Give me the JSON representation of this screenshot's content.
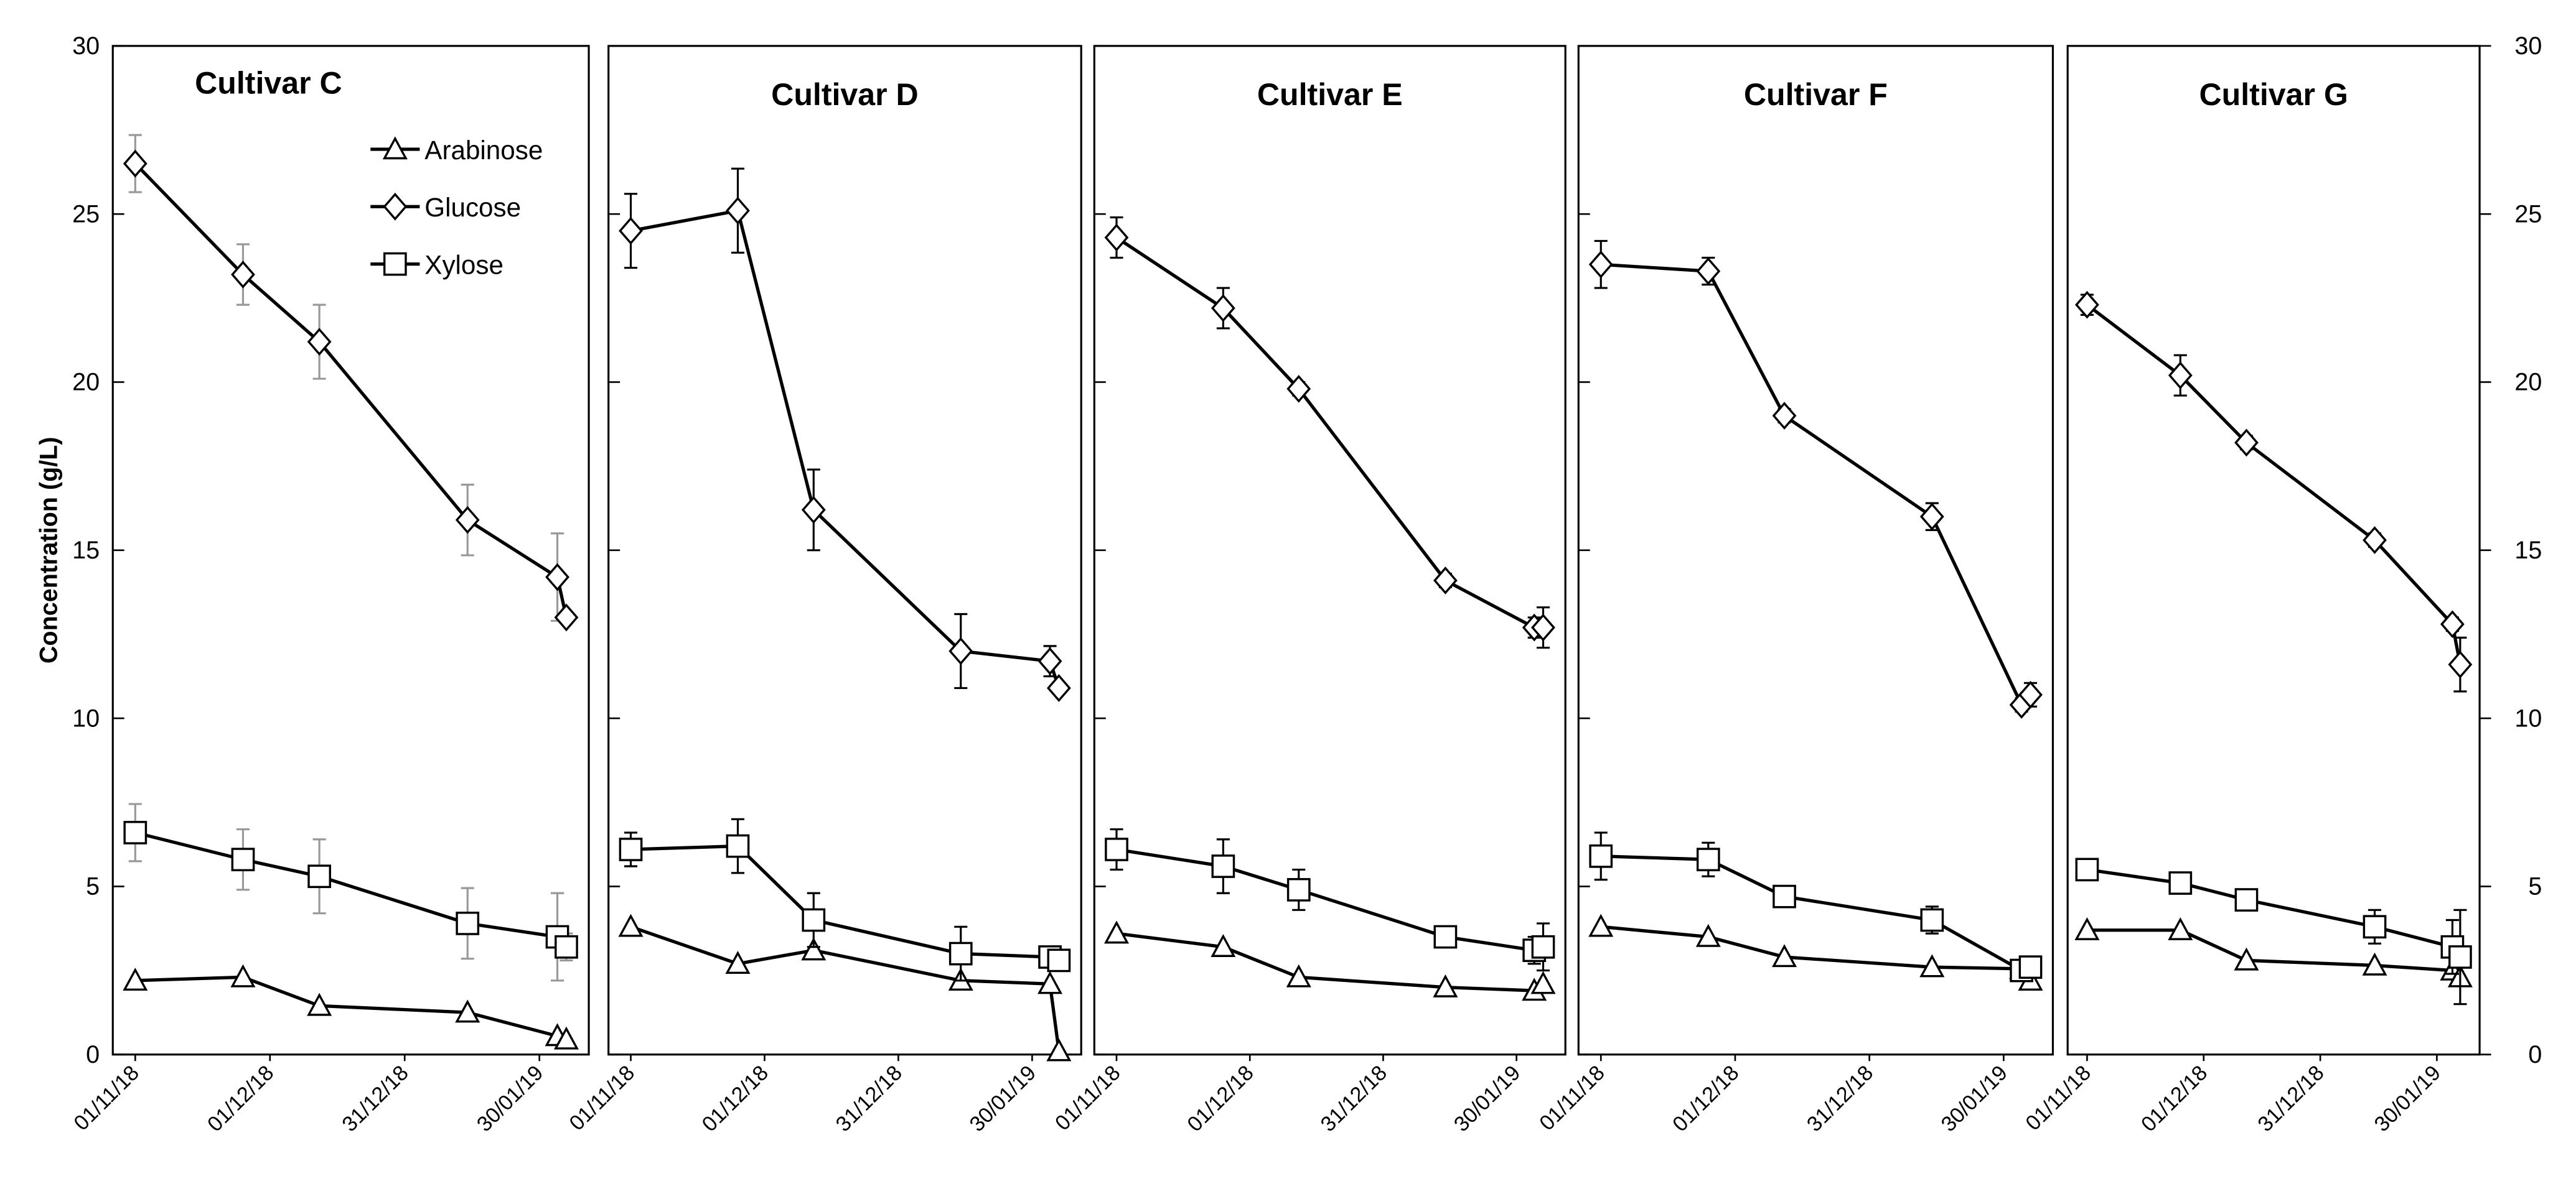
{
  "chart_data": [
    {
      "type": "line",
      "title": "Cultivar C",
      "ylabel": "Concentration (g/L)",
      "ytick_labels": "left",
      "legend": "upper right",
      "error_color": "#999999",
      "x": [
        "01/11/18",
        "25/11/18",
        "12/12/18",
        "14/01/19",
        "03/02/19",
        "05/02/19"
      ],
      "xlim": [
        "27/10/18",
        "10/02/19"
      ],
      "xticks": [
        "01/11/18",
        "01/12/18",
        "31/12/18",
        "30/01/19"
      ],
      "ylim": [
        0,
        30
      ],
      "yticks": [
        0,
        5,
        10,
        15,
        20,
        25,
        30
      ],
      "series": [
        {
          "name": "Arabinose",
          "marker": "triangle",
          "color": "#000000",
          "values": [
            2.2,
            2.3,
            1.45,
            1.25,
            0.55,
            0.45
          ]
        },
        {
          "name": "Glucose",
          "marker": "diamond",
          "color": "#000000",
          "values": [
            26.5,
            23.2,
            21.2,
            15.9,
            14.2,
            13.0
          ],
          "errors": [
            0.85,
            0.9,
            1.1,
            1.05,
            1.3,
            0.1
          ]
        },
        {
          "name": "Xylose",
          "marker": "square",
          "color": "#000000",
          "values": [
            6.6,
            5.8,
            5.3,
            3.9,
            3.5,
            3.2
          ],
          "errors": [
            0.85,
            0.9,
            1.1,
            1.05,
            1.3,
            0.4
          ]
        }
      ]
    },
    {
      "type": "line",
      "title": "Cultivar D",
      "error_color": "#000000",
      "x": [
        "01/11/18",
        "25/11/18",
        "12/12/18",
        "14/01/19",
        "03/02/19",
        "05/02/19"
      ],
      "xlim": [
        "27/10/18",
        "10/02/19"
      ],
      "xticks": [
        "01/11/18",
        "01/12/18",
        "31/12/18",
        "30/01/19"
      ],
      "ylim": [
        0,
        30
      ],
      "yticks": [
        0,
        5,
        10,
        15,
        20,
        25,
        30
      ],
      "series": [
        {
          "marker": "triangle",
          "color": "#000000",
          "values": [
            3.8,
            2.7,
            3.1,
            2.2,
            2.1,
            0.1
          ]
        },
        {
          "marker": "diamond",
          "color": "#000000",
          "values": [
            24.5,
            25.1,
            16.2,
            12.0,
            11.7,
            10.9
          ],
          "errors": [
            1.1,
            1.25,
            1.2,
            1.1,
            0.45,
            0.1
          ]
        },
        {
          "marker": "square",
          "color": "#000000",
          "values": [
            6.1,
            6.2,
            4.0,
            3.0,
            2.9,
            2.8
          ],
          "errors": [
            0.5,
            0.8,
            0.8,
            0.8,
            0.1,
            0.1
          ]
        }
      ]
    },
    {
      "type": "line",
      "title": "Cultivar E",
      "error_color": "#000000",
      "x": [
        "01/11/18",
        "25/11/18",
        "12/12/18",
        "14/01/19",
        "03/02/19",
        "05/02/19"
      ],
      "xlim": [
        "27/10/18",
        "10/02/19"
      ],
      "xticks": [
        "01/11/18",
        "01/12/18",
        "31/12/18",
        "30/01/19"
      ],
      "ylim": [
        0,
        30
      ],
      "yticks": [
        0,
        5,
        10,
        15,
        20,
        25,
        30
      ],
      "series": [
        {
          "marker": "triangle",
          "color": "#000000",
          "values": [
            3.6,
            3.2,
            2.3,
            2.0,
            1.9,
            2.1
          ]
        },
        {
          "marker": "diamond",
          "color": "#000000",
          "values": [
            24.3,
            22.2,
            19.8,
            14.1,
            12.7,
            12.7
          ],
          "errors": [
            0.6,
            0.6,
            0.2,
            0.2,
            0.3,
            0.6
          ]
        },
        {
          "marker": "square",
          "color": "#000000",
          "values": [
            6.1,
            5.6,
            4.9,
            3.5,
            3.1,
            3.2
          ],
          "errors": [
            0.6,
            0.8,
            0.6,
            0.2,
            0.4,
            0.7
          ]
        }
      ]
    },
    {
      "type": "line",
      "title": "Cultivar F",
      "error_color": "#000000",
      "x": [
        "01/11/18",
        "25/11/18",
        "12/12/18",
        "14/01/19",
        "03/02/19",
        "05/02/19"
      ],
      "xlim": [
        "27/10/18",
        "10/02/19"
      ],
      "xticks": [
        "01/11/18",
        "01/12/18",
        "31/12/18",
        "30/01/19"
      ],
      "ylim": [
        0,
        30
      ],
      "yticks": [
        0,
        5,
        10,
        15,
        20,
        25,
        30
      ],
      "series": [
        {
          "marker": "triangle",
          "color": "#000000",
          "values": [
            3.8,
            3.5,
            2.9,
            2.6,
            2.55,
            2.2
          ]
        },
        {
          "marker": "diamond",
          "color": "#000000",
          "values": [
            23.5,
            23.3,
            19.0,
            16.0,
            10.4,
            10.7
          ],
          "errors": [
            0.7,
            0.4,
            0.2,
            0.4,
            0.2,
            0.35
          ]
        },
        {
          "marker": "square",
          "color": "#000000",
          "values": [
            5.9,
            5.8,
            4.7,
            4.0,
            2.5,
            2.6
          ],
          "errors": [
            0.7,
            0.5,
            0.3,
            0.4,
            0.2,
            0.2
          ]
        }
      ]
    },
    {
      "type": "line",
      "title": "Cultivar G",
      "ytick_labels": "right",
      "error_color": "#000000",
      "x": [
        "01/11/18",
        "25/11/18",
        "12/12/18",
        "14/01/19",
        "03/02/19",
        "05/02/19"
      ],
      "xlim": [
        "27/10/18",
        "10/02/19"
      ],
      "xticks": [
        "01/11/18",
        "01/12/18",
        "31/12/18",
        "30/01/19"
      ],
      "ylim": [
        0,
        30
      ],
      "yticks": [
        0,
        5,
        10,
        15,
        20,
        25,
        30
      ],
      "series": [
        {
          "marker": "triangle",
          "color": "#000000",
          "values": [
            3.7,
            3.7,
            2.8,
            2.65,
            2.5,
            2.3
          ]
        },
        {
          "marker": "diamond",
          "color": "#000000",
          "values": [
            22.3,
            20.2,
            18.2,
            15.3,
            12.8,
            11.6
          ],
          "errors": [
            0.3,
            0.6,
            0.2,
            0.2,
            0.2,
            0.8
          ]
        },
        {
          "marker": "square",
          "color": "#000000",
          "values": [
            5.5,
            5.1,
            4.6,
            3.8,
            3.2,
            2.9
          ],
          "errors": [
            0.3,
            0.3,
            0.3,
            0.5,
            0.8,
            1.4
          ]
        }
      ]
    }
  ]
}
